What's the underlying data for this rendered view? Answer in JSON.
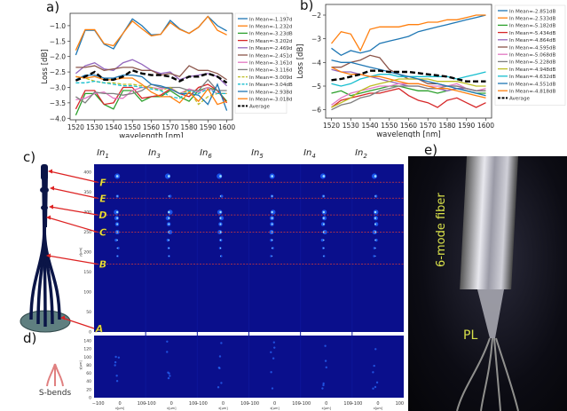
{
  "panels": {
    "a": "a)",
    "b": "b)",
    "c": "c)",
    "d": "d)",
    "e": "e)"
  },
  "chart_data": [
    {
      "type": "line",
      "panel": "a)",
      "xlabel": "wavelength [nm]",
      "ylabel": "Loss [dB]",
      "xlim": [
        1517,
        1603
      ],
      "ylim": [
        -4.05,
        -0.6
      ],
      "xticks": [
        1520,
        1530,
        1540,
        1550,
        1560,
        1570,
        1580,
        1590,
        1600
      ],
      "yticks": [
        -4.0,
        -3.5,
        -3.0,
        -2.5,
        -2.0,
        -1.5,
        -1.0
      ],
      "grid": false,
      "legend_position": "right-outside",
      "x": [
        1520,
        1525,
        1530,
        1535,
        1540,
        1545,
        1550,
        1555,
        1560,
        1565,
        1570,
        1575,
        1580,
        1585,
        1590,
        1595,
        1600
      ],
      "series": [
        {
          "name": "In Mean=-1.197dB",
          "color": "#1f77b4",
          "dash": false,
          "values": [
            -1.95,
            -1.15,
            -1.15,
            -1.6,
            -1.75,
            -1.25,
            -0.78,
            -1.0,
            -1.3,
            -1.28,
            -0.83,
            -1.1,
            -1.25,
            -1.05,
            -0.7,
            -1.0,
            -1.17
          ]
        },
        {
          "name": "In Mean=-1.232dB",
          "color": "#ff7f0e",
          "dash": false,
          "values": [
            -1.8,
            -1.13,
            -1.13,
            -1.58,
            -1.65,
            -1.25,
            -0.85,
            -1.1,
            -1.33,
            -1.28,
            -0.9,
            -1.12,
            -1.25,
            -1.05,
            -0.7,
            -1.15,
            -1.3
          ]
        },
        {
          "name": "In Mean=-3.23dB",
          "color": "#2ca02c",
          "dash": false,
          "values": [
            -3.9,
            -3.2,
            -3.2,
            -3.55,
            -3.7,
            -3.1,
            -3.1,
            -3.45,
            -3.3,
            -3.3,
            -3.1,
            -3.3,
            -3.45,
            -3.1,
            -3.0,
            -3.1,
            -3.45
          ]
        },
        {
          "name": "In Mean=-3.202dB",
          "color": "#d62728",
          "dash": false,
          "values": [
            -3.7,
            -3.1,
            -3.1,
            -3.55,
            -3.5,
            -3.0,
            -3.0,
            -3.35,
            -3.3,
            -3.25,
            -3.05,
            -3.2,
            -3.3,
            -3.0,
            -2.9,
            -3.1,
            -3.5
          ]
        },
        {
          "name": "In Mean=-2.469dB",
          "color": "#9467bd",
          "dash": false,
          "values": [
            -2.55,
            -2.3,
            -2.2,
            -2.4,
            -2.45,
            -2.2,
            -2.1,
            -2.25,
            -2.45,
            -2.55,
            -2.5,
            -2.75,
            -2.65,
            -2.6,
            -2.55,
            -2.65,
            -2.95
          ]
        },
        {
          "name": "In Mean=-2.451dB",
          "color": "#8c564b",
          "dash": false,
          "values": [
            -2.35,
            -2.35,
            -2.3,
            -2.45,
            -2.4,
            -2.35,
            -2.35,
            -2.45,
            -2.45,
            -2.6,
            -2.55,
            -2.65,
            -2.3,
            -2.45,
            -2.45,
            -2.55,
            -2.75
          ]
        },
        {
          "name": "In Mean=-3.161dB",
          "color": "#e377c2",
          "dash": false,
          "values": [
            -3.4,
            -3.35,
            -3.2,
            -3.15,
            -3.35,
            -3.35,
            -3.1,
            -3.0,
            -3.0,
            -3.05,
            -3.0,
            -3.2,
            -3.05,
            -3.15,
            -3.0,
            -3.2,
            -3.2
          ]
        },
        {
          "name": "In Mean=-3.116dB",
          "color": "#7f7f7f",
          "dash": false,
          "values": [
            -3.3,
            -3.5,
            -3.15,
            -3.2,
            -3.2,
            -3.25,
            -3.2,
            -3.1,
            -2.9,
            -3.0,
            -3.0,
            -3.0,
            -3.1,
            -3.1,
            -2.75,
            -3.1,
            -3.1
          ]
        },
        {
          "name": "In Mean=-3.009dB",
          "color": "#bcbd22",
          "dash": true,
          "values": [
            -2.65,
            -2.7,
            -2.8,
            -2.85,
            -2.85,
            -2.9,
            -2.9,
            -2.95,
            -3.0,
            -3.1,
            -3.0,
            -3.2,
            -3.1,
            -3.55,
            -3.3,
            -3.2,
            -3.2
          ]
        },
        {
          "name": "In Mean=-3.04dB",
          "color": "#17becf",
          "dash": true,
          "values": [
            -2.85,
            -2.85,
            -2.8,
            -2.85,
            -2.9,
            -2.95,
            -2.95,
            -3.0,
            -3.05,
            -3.1,
            -3.3,
            -3.35,
            -3.1,
            -3.2,
            -3.05,
            -3.2,
            -3.2
          ]
        },
        {
          "name": "In Mean=-2.938dB",
          "color": "#1f77b4",
          "dash": false,
          "values": [
            -2.75,
            -2.6,
            -2.6,
            -2.7,
            -2.7,
            -2.6,
            -2.6,
            -2.65,
            -2.9,
            -2.95,
            -3.05,
            -3.2,
            -3.2,
            -3.25,
            -3.55,
            -2.9,
            -3.75
          ]
        },
        {
          "name": "In Mean=-3.018dB",
          "color": "#ff7f0e",
          "dash": false,
          "values": [
            -2.65,
            -2.7,
            -2.65,
            -2.75,
            -2.75,
            -2.7,
            -2.7,
            -2.9,
            -3.15,
            -3.3,
            -3.3,
            -3.5,
            -3.15,
            -3.45,
            -3.05,
            -3.55,
            -3.45
          ]
        },
        {
          "name": "Average",
          "color": "#000000",
          "dash": true,
          "bold": true,
          "values": [
            -2.78,
            -2.65,
            -2.5,
            -2.75,
            -2.75,
            -2.65,
            -2.45,
            -2.55,
            -2.6,
            -2.6,
            -2.65,
            -2.8,
            -2.65,
            -2.65,
            -2.55,
            -2.65,
            -2.85
          ]
        }
      ]
    },
    {
      "type": "line",
      "panel": "b)",
      "xlabel": "wavelength [nm]",
      "ylabel": "Loss [dB]",
      "xlim": [
        1517,
        1603
      ],
      "ylim": [
        -6.35,
        -1.55
      ],
      "xticks": [
        1520,
        1530,
        1540,
        1550,
        1560,
        1570,
        1580,
        1590,
        1600
      ],
      "yticks": [
        -6,
        -5,
        -4,
        -3,
        -2
      ],
      "grid": false,
      "legend_position": "right-outside",
      "x": [
        1520,
        1525,
        1530,
        1535,
        1540,
        1545,
        1550,
        1555,
        1560,
        1565,
        1570,
        1575,
        1580,
        1585,
        1590,
        1595,
        1600
      ],
      "series": [
        {
          "name": "In Mean=-2.851dB",
          "color": "#1f77b4",
          "dash": false,
          "values": [
            -3.4,
            -3.7,
            -3.5,
            -3.6,
            -3.5,
            -3.2,
            -3.1,
            -3.0,
            -2.9,
            -2.7,
            -2.6,
            -2.5,
            -2.4,
            -2.3,
            -2.2,
            -2.1,
            -2.0
          ]
        },
        {
          "name": "In Mean=-2.533dB",
          "color": "#ff7f0e",
          "dash": false,
          "values": [
            -3.2,
            -2.7,
            -2.8,
            -3.5,
            -2.6,
            -2.5,
            -2.5,
            -2.5,
            -2.4,
            -2.4,
            -2.3,
            -2.3,
            -2.2,
            -2.2,
            -2.1,
            -2.0,
            -2.0
          ]
        },
        {
          "name": "In Mean=-5.182dB",
          "color": "#2ca02c",
          "dash": false,
          "values": [
            -5.3,
            -5.2,
            -5.4,
            -5.3,
            -5.2,
            -5.1,
            -5.0,
            -5.0,
            -5.1,
            -5.2,
            -5.2,
            -5.3,
            -5.2,
            -5.1,
            -5.2,
            -5.3,
            -5.3
          ]
        },
        {
          "name": "In Mean=-5.434dB",
          "color": "#d62728",
          "dash": false,
          "values": [
            -5.9,
            -5.6,
            -5.5,
            -5.4,
            -5.3,
            -5.3,
            -5.2,
            -5.1,
            -5.4,
            -5.6,
            -5.7,
            -5.9,
            -5.6,
            -5.5,
            -5.7,
            -5.9,
            -5.7
          ]
        },
        {
          "name": "In Mean=-4.864dB",
          "color": "#9467bd",
          "dash": false,
          "values": [
            -4.3,
            -4.4,
            -4.4,
            -4.5,
            -4.6,
            -4.7,
            -4.8,
            -4.9,
            -5.0,
            -5.0,
            -5.1,
            -5.1,
            -5.2,
            -5.1,
            -5.1,
            -5.2,
            -5.2
          ]
        },
        {
          "name": "In Mean=-4.595dB",
          "color": "#8c564b",
          "dash": false,
          "values": [
            -4.2,
            -4.2,
            -4.0,
            -3.9,
            -3.7,
            -3.8,
            -4.3,
            -4.5,
            -4.7,
            -4.7,
            -4.9,
            -4.9,
            -5.0,
            -5.0,
            -5.1,
            -5.2,
            -5.2
          ]
        },
        {
          "name": "In Mean=-5.068dB",
          "color": "#e377c2",
          "dash": false,
          "values": [
            -5.8,
            -5.5,
            -5.3,
            -5.2,
            -5.1,
            -5.0,
            -5.0,
            -4.9,
            -4.9,
            -4.9,
            -5.0,
            -5.0,
            -5.0,
            -4.9,
            -5.1,
            -5.2,
            -5.1
          ]
        },
        {
          "name": "In Mean=-5.228dB",
          "color": "#7f7f7f",
          "dash": false,
          "values": [
            -6.0,
            -5.8,
            -5.7,
            -5.5,
            -5.4,
            -5.2,
            -5.1,
            -5.0,
            -5.0,
            -5.0,
            -5.1,
            -5.1,
            -5.0,
            -5.0,
            -5.1,
            -5.2,
            -5.2
          ]
        },
        {
          "name": "In Mean=-4.948dB",
          "color": "#bcbd22",
          "dash": false,
          "values": [
            -5.9,
            -5.7,
            -5.5,
            -5.2,
            -5.0,
            -4.9,
            -4.8,
            -4.7,
            -4.7,
            -4.7,
            -4.7,
            -4.8,
            -4.8,
            -4.8,
            -4.9,
            -5.0,
            -5.0
          ]
        },
        {
          "name": "In Mean=-4.632dB",
          "color": "#17becf",
          "dash": false,
          "values": [
            -4.9,
            -5.0,
            -4.9,
            -4.7,
            -4.6,
            -4.5,
            -4.5,
            -4.6,
            -4.6,
            -4.6,
            -4.6,
            -4.6,
            -4.6,
            -4.7,
            -4.6,
            -4.5,
            -4.4
          ]
        },
        {
          "name": "In Mean=-4.551dB",
          "color": "#1f77b4",
          "dash": false,
          "values": [
            -3.9,
            -4.0,
            -4.0,
            -4.1,
            -4.2,
            -4.3,
            -4.4,
            -4.5,
            -4.6,
            -4.7,
            -4.8,
            -4.9,
            -5.0,
            -5.1,
            -5.2,
            -5.3,
            -5.4
          ]
        },
        {
          "name": "In Mean=-4.818dB",
          "color": "#ff7f0e",
          "dash": false,
          "values": [
            -4.2,
            -4.4,
            -4.5,
            -4.5,
            -4.6,
            -4.6,
            -4.7,
            -4.8,
            -4.9,
            -4.9,
            -5.0,
            -5.1,
            -5.1,
            -5.2,
            -5.3,
            -5.4,
            -5.5
          ]
        },
        {
          "name": "Average",
          "color": "#000000",
          "dash": true,
          "bold": true,
          "values": [
            -4.75,
            -4.7,
            -4.6,
            -4.5,
            -4.35,
            -4.35,
            -4.4,
            -4.4,
            -4.4,
            -4.45,
            -4.5,
            -4.55,
            -4.6,
            -4.7,
            -4.8,
            -4.8,
            -4.8
          ]
        }
      ]
    }
  ],
  "imaging": {
    "columns": [
      "In1",
      "In3",
      "In6",
      "In5",
      "In4",
      "In2"
    ],
    "column_main": "In",
    "column_subs": [
      "1",
      "3",
      "6",
      "5",
      "4",
      "2"
    ],
    "c_yticks": [
      0,
      50,
      100,
      150,
      200,
      250,
      300,
      350,
      400
    ],
    "d_yticks": [
      0,
      20,
      40,
      60,
      80,
      100,
      120,
      140
    ],
    "xticks": [
      -100,
      0,
      100
    ],
    "ylabel": "y[µm]",
    "xlabel": "x[µm]",
    "sections": [
      {
        "label": "F",
        "y": 375
      },
      {
        "label": "E",
        "y": 335
      },
      {
        "label": "D",
        "y": 293
      },
      {
        "label": "C",
        "y": 250
      },
      {
        "label": "B",
        "y": 170
      },
      {
        "label": "A",
        "y": 0
      }
    ],
    "background_color": "#0a0f8c",
    "section_line_color": "#d23a3a",
    "sbends_label": "S-bends"
  },
  "photo": {
    "fiber_label": "6-mode fiber",
    "pl_label": "PL",
    "label_color": "#d8e04a"
  }
}
